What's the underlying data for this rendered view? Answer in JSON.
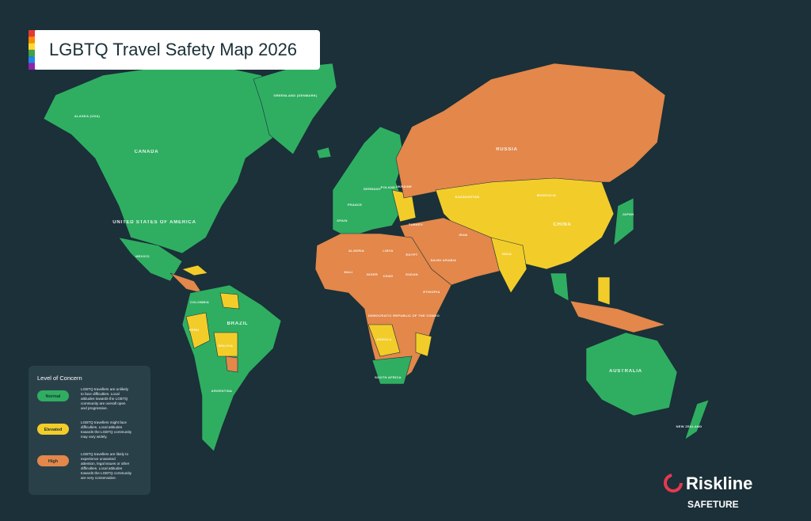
{
  "header": {
    "title": "LGBTQ Travel Safety Map 2026"
  },
  "map": {
    "labels": [
      "ALASKA (USA)",
      "CANADA",
      "GREENLAND (DENMARK)",
      "UNITED STATES OF AMERICA",
      "MEXICO",
      "COLOMBIA",
      "PERU",
      "BRAZIL",
      "BOLIVIA",
      "ARGENTINA",
      "RUSSIA",
      "KAZAKHSTAN",
      "MONGOLIA",
      "CHINA",
      "INDIA",
      "IRAN",
      "SAUDI ARABIA",
      "EGYPT",
      "LIBYA",
      "ALGERIA",
      "MALI",
      "NIGER",
      "CHAD",
      "SUDAN",
      "ETHIOPIA",
      "DEMOCRATIC REPUBLIC OF THE CONGO",
      "ANGOLA",
      "SOUTH AFRICA",
      "AUSTRALIA",
      "NEW ZEALAND",
      "JAPAN",
      "FRANCE",
      "SPAIN",
      "GERMANY",
      "POLAND",
      "UKRAINE",
      "TURKEY"
    ]
  },
  "legend": {
    "title": "Level of Concern",
    "items": [
      {
        "label": "Normal",
        "color": "#2fae62",
        "description": [
          "LGBTQ travellers are unlikely",
          "to face difficulties. Local",
          "attitudes towards the LGBTQ",
          "community are overall open",
          "and progressive."
        ]
      },
      {
        "label": "Elevated",
        "color": "#f2cd2a",
        "description": [
          "LGBTQ travellers might face",
          "difficulties. Local attitudes",
          "towards the LGBTQ community",
          "may vary widely."
        ]
      },
      {
        "label": "High",
        "color": "#e3874a",
        "description": [
          "LGBTQ travellers are likely to",
          "experience unwanted",
          "attention, legal issues or other",
          "difficulties. Local attitudes",
          "towards the LGBTQ community",
          "are very conservative."
        ]
      }
    ]
  },
  "brand": {
    "name": "Riskline",
    "partner": "SAFETURE"
  }
}
